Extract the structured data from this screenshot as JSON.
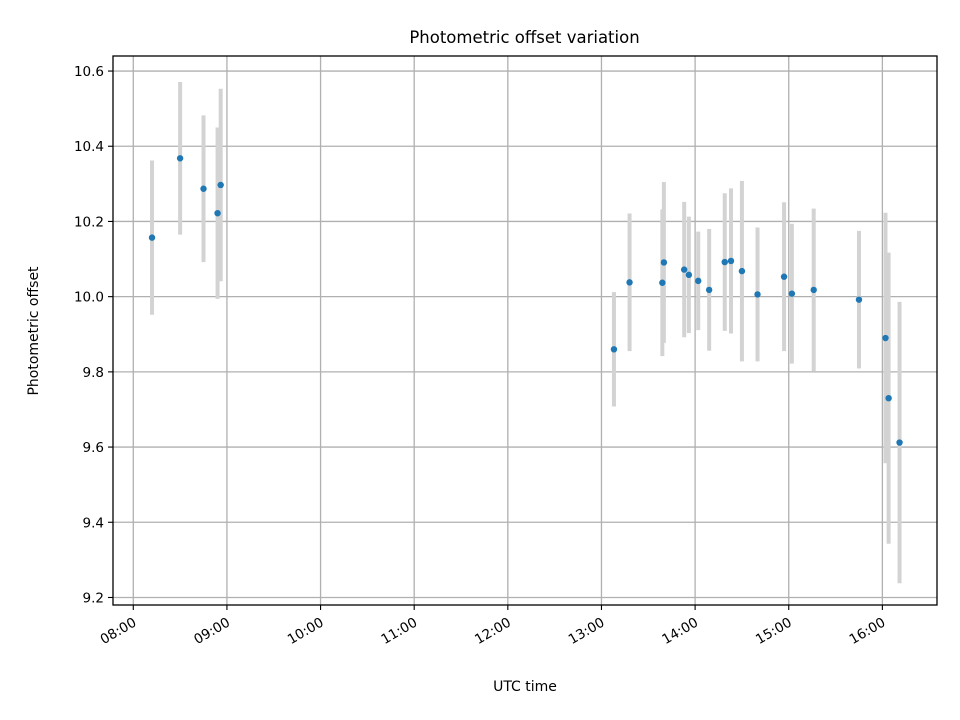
{
  "chart_data": {
    "type": "scatter",
    "title": "Photometric offset variation",
    "xlabel": "UTC time",
    "ylabel": "Photometric offset",
    "x_tick_labels": [
      "08:00",
      "09:00",
      "10:00",
      "11:00",
      "12:00",
      "13:00",
      "14:00",
      "15:00",
      "16:00"
    ],
    "x_tick_hours": [
      8,
      9,
      10,
      11,
      12,
      13,
      14,
      15,
      16
    ],
    "y_ticks": [
      9.2,
      9.4,
      9.6,
      9.8,
      10.0,
      10.2,
      10.4,
      10.6
    ],
    "y_tick_labels": [
      "9.2",
      "9.4",
      "9.6",
      "9.8",
      "10.0",
      "10.2",
      "10.4",
      "10.6"
    ],
    "xlim": [
      "07:47",
      "16:35"
    ],
    "ylim": [
      9.18,
      10.64
    ],
    "grid": true,
    "legend": "none",
    "colors": {
      "point": "#1f77b4",
      "errorbar": "#d3d3d3",
      "grid": "#b0b0b0"
    },
    "points": [
      {
        "time": "08:12",
        "y": 10.157,
        "yerr": 0.205
      },
      {
        "time": "08:30",
        "y": 10.368,
        "yerr": 0.203
      },
      {
        "time": "08:45",
        "y": 10.287,
        "yerr": 0.195
      },
      {
        "time": "08:54",
        "y": 10.222,
        "yerr": 0.228
      },
      {
        "time": "08:56",
        "y": 10.297,
        "yerr": 0.256
      },
      {
        "time": "13:08",
        "y": 9.86,
        "yerr": 0.152
      },
      {
        "time": "13:18",
        "y": 10.038,
        "yerr": 0.183
      },
      {
        "time": "13:39",
        "y": 10.037,
        "yerr": 0.195
      },
      {
        "time": "13:40",
        "y": 10.091,
        "yerr": 0.214
      },
      {
        "time": "13:53",
        "y": 10.072,
        "yerr": 0.18
      },
      {
        "time": "13:56",
        "y": 10.058,
        "yerr": 0.155
      },
      {
        "time": "14:02",
        "y": 10.042,
        "yerr": 0.131
      },
      {
        "time": "14:09",
        "y": 10.018,
        "yerr": 0.162
      },
      {
        "time": "14:19",
        "y": 10.092,
        "yerr": 0.183
      },
      {
        "time": "14:23",
        "y": 10.095,
        "yerr": 0.193
      },
      {
        "time": "14:30",
        "y": 10.068,
        "yerr": 0.24
      },
      {
        "time": "14:40",
        "y": 10.006,
        "yerr": 0.178
      },
      {
        "time": "14:57",
        "y": 10.053,
        "yerr": 0.198
      },
      {
        "time": "15:02",
        "y": 10.008,
        "yerr": 0.186
      },
      {
        "time": "15:16",
        "y": 10.018,
        "yerr": 0.216
      },
      {
        "time": "15:45",
        "y": 9.992,
        "yerr": 0.183
      },
      {
        "time": "16:02",
        "y": 9.89,
        "yerr": 0.333
      },
      {
        "time": "16:04",
        "y": 9.73,
        "yerr": 0.387
      },
      {
        "time": "16:11",
        "y": 9.612,
        "yerr": 0.374
      }
    ]
  }
}
